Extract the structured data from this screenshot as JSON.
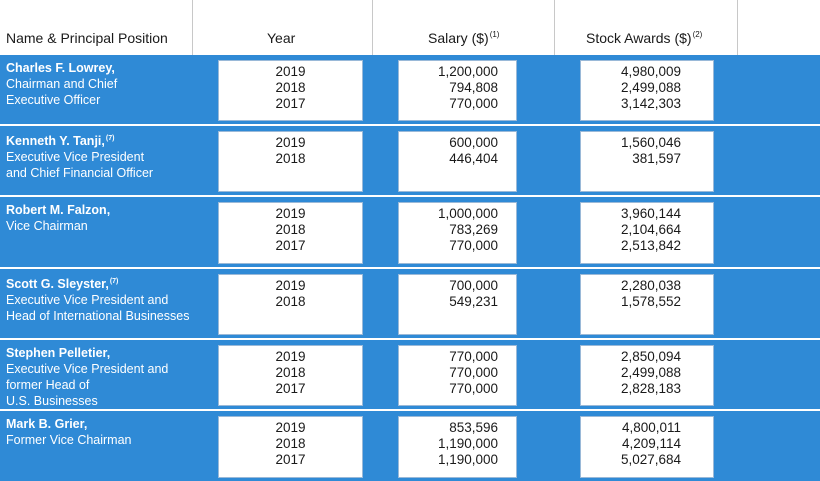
{
  "header": {
    "name_label": "Name & Principal Position",
    "year_label": "Year",
    "salary_label": "Salary ($)",
    "salary_note": "(1)",
    "stock_label": "Stock Awards ($)",
    "stock_note": "(2)"
  },
  "rows": [
    {
      "name": "Charles F. Lowrey,",
      "note": "",
      "title_lines": [
        "Chairman and Chief",
        "Executive Officer"
      ],
      "years": [
        "2019",
        "2018",
        "2017"
      ],
      "salary": [
        "1,200,000",
        "794,808",
        "770,000"
      ],
      "stock": [
        "4,980,009",
        "2,499,088",
        "3,142,303"
      ]
    },
    {
      "name": "Kenneth Y. Tanji,",
      "note": "(7)",
      "title_lines": [
        "Executive Vice President",
        "and Chief Financial Officer"
      ],
      "years": [
        "2019",
        "2018"
      ],
      "salary": [
        "600,000",
        "446,404"
      ],
      "stock": [
        "1,560,046",
        "381,597"
      ]
    },
    {
      "name": "Robert M. Falzon,",
      "note": "",
      "title_lines": [
        "Vice Chairman"
      ],
      "years": [
        "2019",
        "2018",
        "2017"
      ],
      "salary": [
        "1,000,000",
        "783,269",
        "770,000"
      ],
      "stock": [
        "3,960,144",
        "2,104,664",
        "2,513,842"
      ]
    },
    {
      "name": "Scott G. Sleyster,",
      "note": "(7)",
      "title_lines": [
        "Executive Vice President and",
        "Head of International Businesses"
      ],
      "years": [
        "2019",
        "2018"
      ],
      "salary": [
        "700,000",
        "549,231"
      ],
      "stock": [
        "2,280,038",
        "1,578,552"
      ]
    },
    {
      "name": "Stephen Pelletier,",
      "note": "",
      "title_lines": [
        "Executive Vice President and",
        "former Head of",
        "U.S. Businesses"
      ],
      "years": [
        "2019",
        "2018",
        "2017"
      ],
      "salary": [
        "770,000",
        "770,000",
        "770,000"
      ],
      "stock": [
        "2,850,094",
        "2,499,088",
        "2,828,183"
      ]
    },
    {
      "name": "Mark B. Grier,",
      "note": "",
      "title_lines": [
        "Former Vice Chairman"
      ],
      "years": [
        "2019",
        "2018",
        "2017"
      ],
      "salary": [
        "853,596",
        "1,190,000",
        "1,190,000"
      ],
      "stock": [
        "4,800,011",
        "4,209,114",
        "5,027,684"
      ]
    }
  ]
}
